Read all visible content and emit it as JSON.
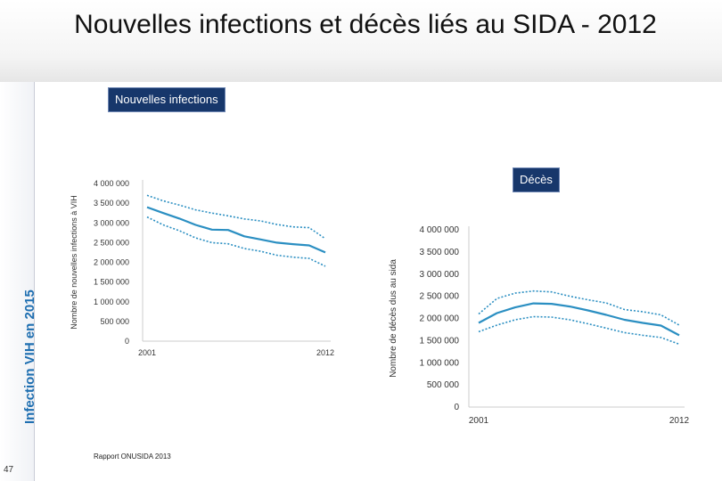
{
  "page": {
    "title": "Nouvelles infections et décès liés au SIDA - 2012",
    "side_label": "Infection VIH en 2015",
    "page_number": "47",
    "source": "Rapport ONUSIDA 2013",
    "tags": {
      "infections": "Nouvelles infections",
      "deaths": "Décès"
    }
  },
  "colors": {
    "series": "#2b8fc2",
    "tag_bg": "#17376b",
    "axis": "#cccccc"
  },
  "chart_data": [
    {
      "type": "line",
      "title": "Nouvelles infections",
      "ylabel": "Nombre de nouvelles infections à VIH",
      "xlabel": "",
      "x": [
        2001,
        2002,
        2003,
        2004,
        2005,
        2006,
        2007,
        2008,
        2009,
        2010,
        2011,
        2012
      ],
      "x_tick_labels": [
        "2001",
        "2012"
      ],
      "y_tick_labels": [
        "0",
        "500 000",
        "1 000 000",
        "1 500 000",
        "2 000 000",
        "2 500 000",
        "3 000 000",
        "3 500 000",
        "4 000 000"
      ],
      "ylim": [
        0,
        4000000
      ],
      "series": [
        {
          "name": "upper",
          "style": "dotted",
          "values": [
            3700000,
            3560000,
            3450000,
            3330000,
            3250000,
            3180000,
            3100000,
            3050000,
            2960000,
            2900000,
            2880000,
            2600000
          ]
        },
        {
          "name": "estimate",
          "style": "solid",
          "values": [
            3400000,
            3250000,
            3110000,
            2950000,
            2830000,
            2820000,
            2660000,
            2580000,
            2500000,
            2460000,
            2430000,
            2250000
          ]
        },
        {
          "name": "lower",
          "style": "dotted",
          "values": [
            3150000,
            2950000,
            2800000,
            2620000,
            2500000,
            2470000,
            2350000,
            2280000,
            2180000,
            2130000,
            2100000,
            1900000
          ]
        }
      ]
    },
    {
      "type": "line",
      "title": "Décès",
      "ylabel": "Nombre de décès dus au sida",
      "xlabel": "",
      "x": [
        2001,
        2002,
        2003,
        2004,
        2005,
        2006,
        2007,
        2008,
        2009,
        2010,
        2011,
        2012
      ],
      "x_tick_labels": [
        "2001",
        "2012"
      ],
      "y_tick_labels": [
        "0",
        "500 000",
        "1 000 000",
        "1 500 000",
        "2 000 000",
        "2 500 000",
        "3 000 000",
        "3 500 000",
        "4 000 000"
      ],
      "ylim": [
        0,
        4000000
      ],
      "series": [
        {
          "name": "upper",
          "style": "dotted",
          "values": [
            2100000,
            2450000,
            2570000,
            2620000,
            2600000,
            2500000,
            2420000,
            2350000,
            2200000,
            2150000,
            2080000,
            1850000
          ]
        },
        {
          "name": "estimate",
          "style": "solid",
          "values": [
            1900000,
            2120000,
            2250000,
            2340000,
            2330000,
            2270000,
            2180000,
            2080000,
            1970000,
            1900000,
            1840000,
            1620000
          ]
        },
        {
          "name": "lower",
          "style": "dotted",
          "values": [
            1700000,
            1850000,
            1970000,
            2040000,
            2030000,
            1970000,
            1880000,
            1780000,
            1680000,
            1620000,
            1570000,
            1420000
          ]
        }
      ]
    }
  ]
}
